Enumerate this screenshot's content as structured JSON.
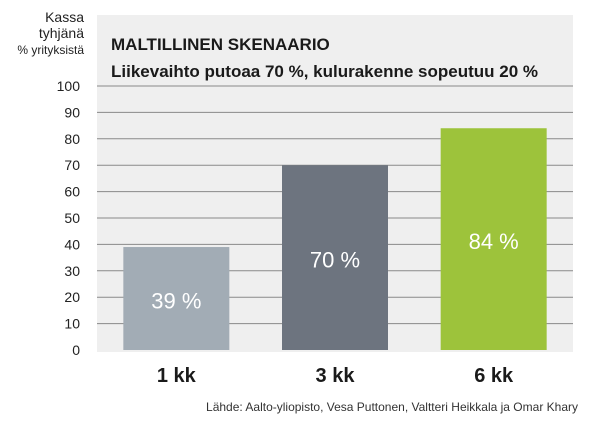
{
  "chart_data": {
    "type": "bar",
    "title": "MALTILLINEN SKENAARIO",
    "subtitle": "Liikevaihto putoaa 70 %, kulurakenne sopeutuu 20 %",
    "ylabel": [
      "Kassa",
      "tyhjänä",
      "% yrityksistä"
    ],
    "ylim": [
      0,
      100
    ],
    "yticks": [
      0,
      10,
      20,
      30,
      40,
      50,
      60,
      70,
      80,
      90,
      100
    ],
    "categories": [
      "1 kk",
      "3 kk",
      "6 kk"
    ],
    "values": [
      39,
      70,
      84
    ],
    "value_labels": [
      "39 %",
      "70 %",
      "84 %"
    ],
    "colors": [
      "#a2acb5",
      "#6d747f",
      "#9dc33b"
    ],
    "grid": true,
    "source": "Lähde: Aalto-yliopisto,  Vesa Puttonen, Valtteri Heikkala ja Omar Khary"
  }
}
